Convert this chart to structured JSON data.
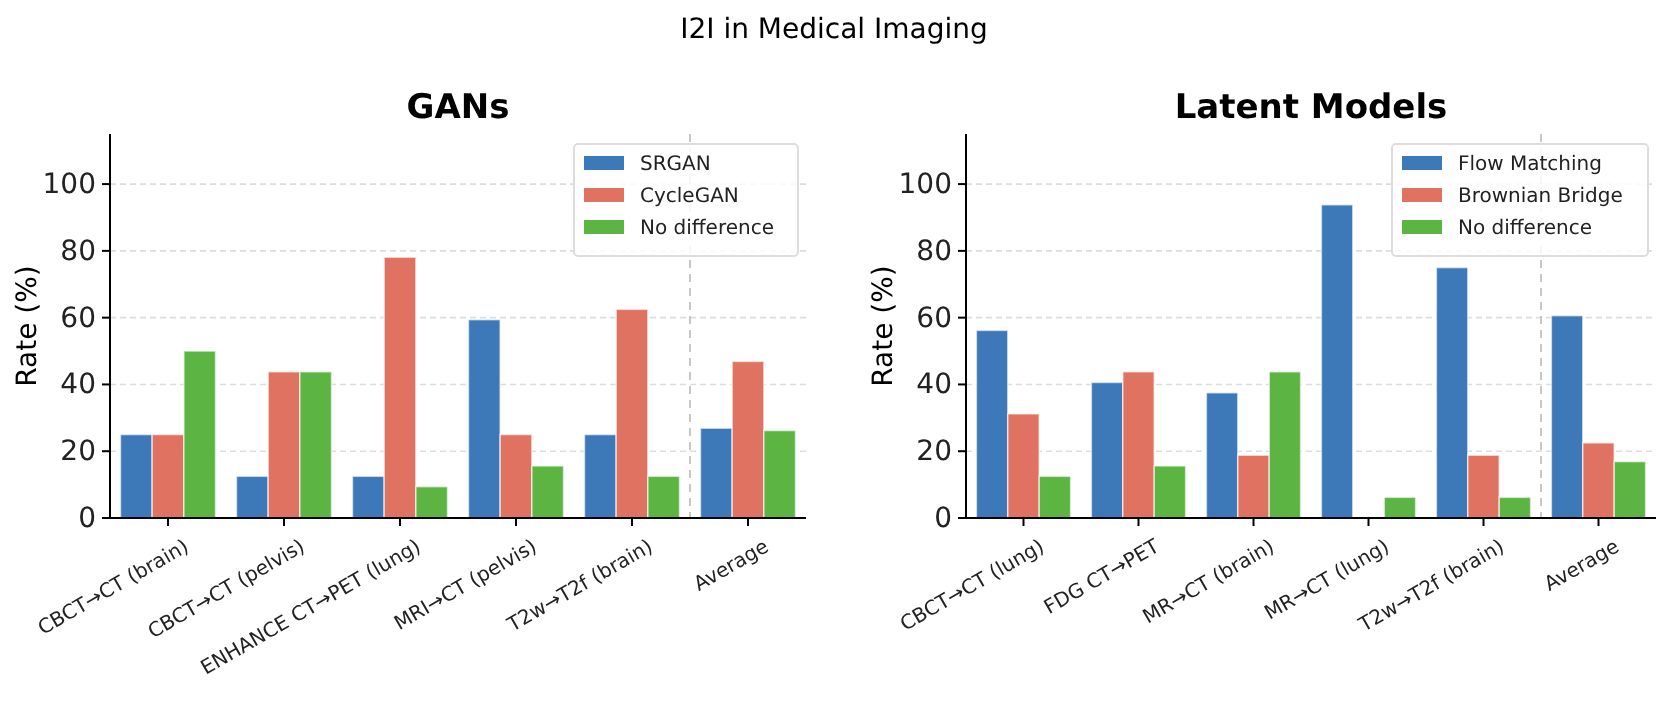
{
  "chart_data": [
    {
      "type": "bar",
      "title": "GANs",
      "ylabel": "Rate (%)",
      "annotations": [
        "I2I in Medical Imaging"
      ],
      "categories": [
        "CBCT→CT (brain)",
        "CBCT→CT (pelvis)",
        "ENHANCE CT→PET (lung)",
        "MRI→CT (pelvis)",
        "T2w→T2f (brain)",
        "Average"
      ],
      "series": [
        {
          "name": "SRGAN",
          "color": "#3d78b8",
          "values": [
            25,
            12.5,
            12.5,
            59.4,
            25,
            26.9
          ]
        },
        {
          "name": "CycleGAN",
          "color": "#e07262",
          "values": [
            25,
            43.8,
            78.1,
            25,
            62.5,
            46.9
          ]
        },
        {
          "name": "No difference",
          "color": "#5cb543",
          "values": [
            50,
            43.8,
            9.4,
            15.6,
            12.5,
            26.2
          ]
        }
      ],
      "ylim": [
        0,
        115
      ],
      "yticks": [
        0,
        20,
        40,
        60,
        80,
        100
      ],
      "grid": "y",
      "legend": "top right"
    },
    {
      "type": "bar",
      "title": "Latent Models",
      "ylabel": "Rate (%)",
      "categories": [
        "CBCT→CT (lung)",
        "FDG CT→PET",
        "MR→CT (brain)",
        "MR→CT (lung)",
        "T2w→T2f (brain)",
        "Average"
      ],
      "series": [
        {
          "name": "Flow Matching",
          "color": "#3d78b8",
          "values": [
            56.2,
            40.6,
            37.5,
            93.8,
            75,
            60.6
          ]
        },
        {
          "name": "Brownian Bridge",
          "color": "#e07262",
          "values": [
            31.2,
            43.8,
            18.8,
            0,
            18.8,
            22.5
          ]
        },
        {
          "name": "No difference",
          "color": "#5cb543",
          "values": [
            12.5,
            15.6,
            43.8,
            6.2,
            6.2,
            16.9
          ]
        }
      ],
      "ylim": [
        0,
        115
      ],
      "yticks": [
        0,
        20,
        40,
        60,
        80,
        100
      ],
      "grid": "y",
      "legend": "top right"
    }
  ]
}
